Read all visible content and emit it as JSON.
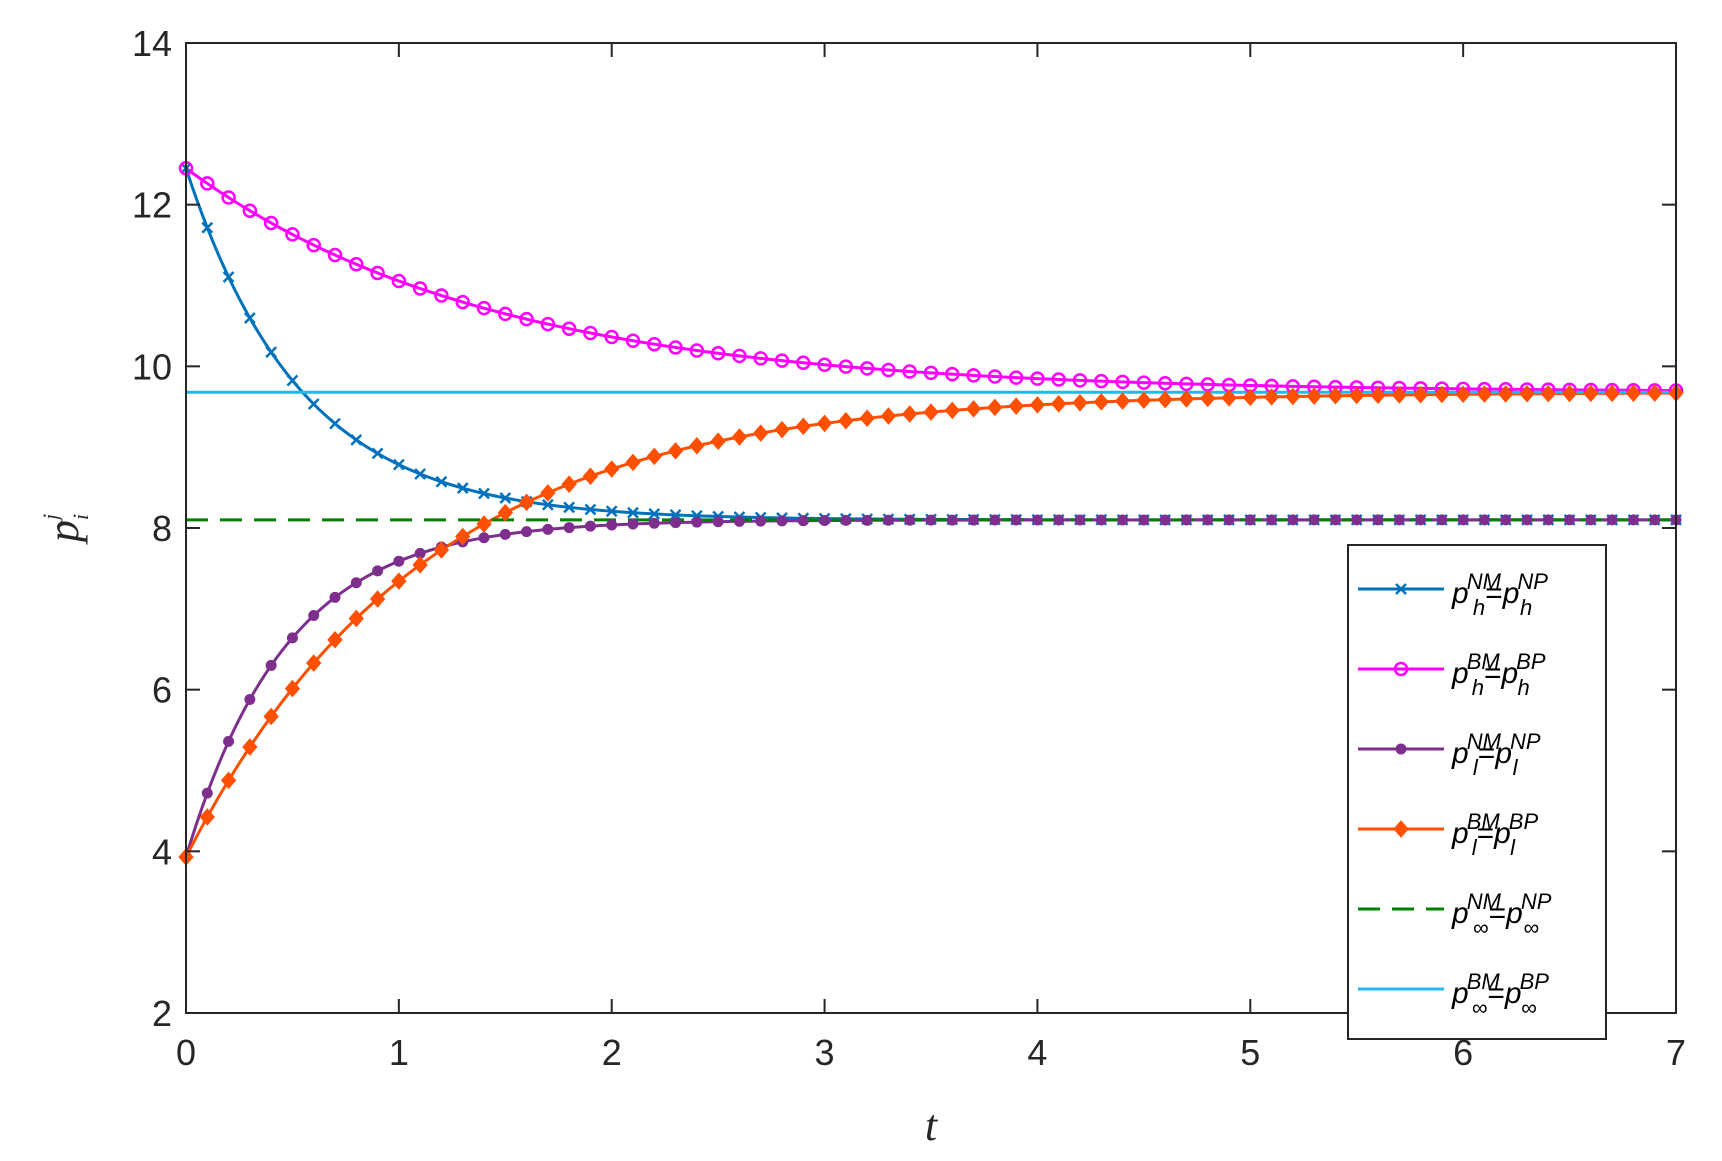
{
  "chart_data": {
    "type": "line",
    "xlabel": "t",
    "ylabel": {
      "base": "p",
      "sub": "i",
      "sup": "j"
    },
    "xlim": [
      0,
      7
    ],
    "ylim": [
      2,
      14
    ],
    "xticks": [
      0,
      1,
      2,
      3,
      4,
      5,
      6,
      7
    ],
    "yticks": [
      2,
      4,
      6,
      8,
      10,
      12,
      14
    ],
    "grid": false,
    "legend_position": "right-center",
    "series": [
      {
        "base": "p",
        "lsub": "h",
        "lsup": "NM",
        "eq": "=",
        "rbase": "p",
        "rsub": "h",
        "rsup": "NP",
        "color": "#0072BD",
        "marker": "x",
        "dash": "solid",
        "model": {
          "kind": "decay",
          "start": 12.45,
          "end": 8.1,
          "rate": 1.85
        }
      },
      {
        "base": "p",
        "lsub": "h",
        "lsup": "BM",
        "eq": "=",
        "rbase": "p",
        "rsub": "h",
        "rsup": "BP",
        "color": "#FF00FF",
        "marker": "circle",
        "dash": "solid",
        "model": {
          "kind": "decay",
          "start": 12.45,
          "end": 9.68,
          "rate": 0.7
        }
      },
      {
        "base": "p",
        "lsub": "l",
        "lsup": "NM",
        "eq": "=",
        "rbase": "p",
        "rsub": "l",
        "rsup": "NP",
        "color": "#7E2F8E",
        "marker": "dot",
        "dash": "solid",
        "model": {
          "kind": "decay",
          "start": 3.93,
          "end": 8.1,
          "rate": 2.1
        }
      },
      {
        "base": "p",
        "lsub": "l",
        "lsup": "BM",
        "eq": "=",
        "rbase": "p",
        "rsub": "l",
        "rsup": "BP",
        "color": "#FF4F00",
        "marker": "diamond",
        "dash": "solid",
        "model": {
          "kind": "decay",
          "start": 3.93,
          "end": 9.68,
          "rate": 0.9
        }
      },
      {
        "base": "p",
        "lsub": "∞",
        "lsup": "NM",
        "eq": "=",
        "rbase": "p",
        "rsub": "∞",
        "rsup": "NP",
        "color": "#008000",
        "marker": "none",
        "dash": "dashed",
        "model": {
          "kind": "constant",
          "value": 8.1
        }
      },
      {
        "base": "p",
        "lsub": "∞",
        "lsup": "BM",
        "eq": "=",
        "rbase": "p",
        "rsub": "∞",
        "rsup": "BP",
        "color": "#1FBBEA",
        "marker": "none",
        "dash": "solid",
        "model": {
          "kind": "constant",
          "value": 9.68
        }
      }
    ]
  }
}
